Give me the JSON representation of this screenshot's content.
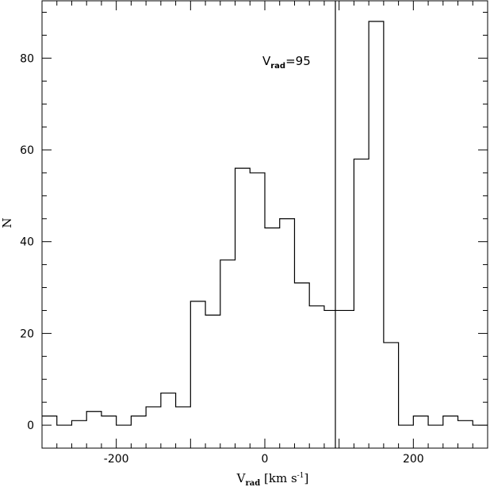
{
  "chart_data": {
    "type": "histogram",
    "xlabel": {
      "main": "V",
      "sub": "rad",
      "units_pre": " [km s",
      "units_sup": "-1",
      "units_post": "]"
    },
    "ylabel": "N",
    "xlim": [
      -300,
      300
    ],
    "ylim": [
      -5,
      92.5
    ],
    "xticks": [
      -200,
      0,
      200
    ],
    "xtick_labels": [
      "-200",
      "0",
      "200"
    ],
    "yticks": [
      0,
      20,
      40,
      60,
      80
    ],
    "ytick_labels": [
      "0",
      "20",
      "40",
      "60",
      "80"
    ],
    "bin_width": 20,
    "bin_left_edges": [
      -300,
      -280,
      -260,
      -240,
      -220,
      -200,
      -180,
      -160,
      -140,
      -120,
      -100,
      -80,
      -60,
      -40,
      -20,
      0,
      20,
      40,
      60,
      80,
      100,
      120,
      140,
      160,
      180,
      200,
      220,
      240,
      260,
      280
    ],
    "counts": [
      2,
      0,
      1,
      3,
      2,
      0,
      2,
      4,
      7,
      4,
      27,
      24,
      36,
      56,
      55,
      43,
      45,
      31,
      26,
      25,
      25,
      58,
      88,
      18,
      0,
      2,
      0,
      2,
      1,
      0
    ],
    "vline": {
      "x": 95,
      "label_main": "V",
      "label_sub": "rad",
      "label_value": "=95"
    },
    "grid": false,
    "legend": false
  }
}
